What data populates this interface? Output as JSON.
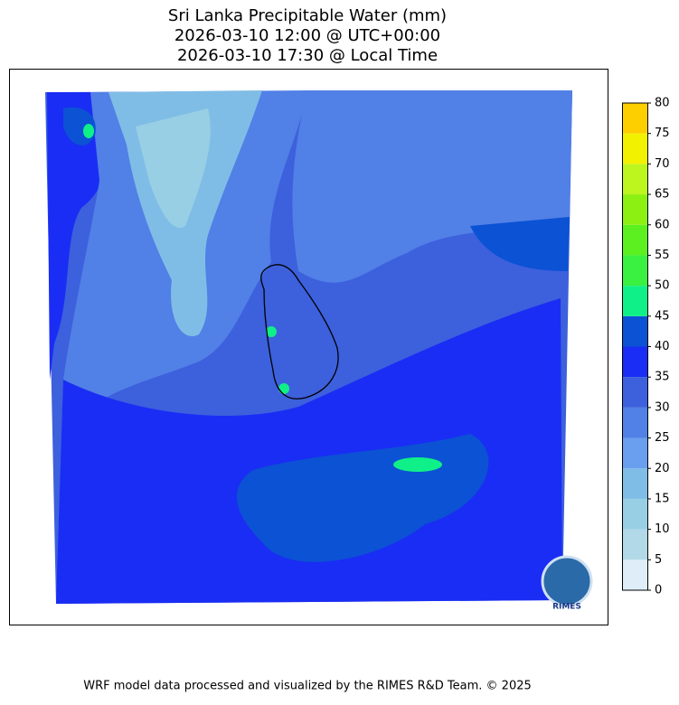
{
  "title": [
    "Sri Lanka Precipitable Water (mm)",
    "2026-03-10 12:00 @ UTC+00:00",
    "2026-03-10 17:30 @ Local Time"
  ],
  "colorbar": {
    "levels": [
      0,
      5,
      10,
      15,
      20,
      25,
      30,
      35,
      40,
      45,
      50,
      55,
      60,
      65,
      70,
      75,
      80
    ],
    "colors": [
      "#deedf7",
      "#b2d9e7",
      "#98cfe5",
      "#80bde6",
      "#6a9eee",
      "#5180e6",
      "#3d60dd",
      "#1a2df4",
      "#0b52d4",
      "#10f088",
      "#3af040",
      "#5cf020",
      "#8cf012",
      "#bdf51f",
      "#f2f200",
      "#fecf00"
    ]
  },
  "logo": "RIMES",
  "footer": "WRF model data processed and visualized by the RIMES R&D Team. © 2025"
}
